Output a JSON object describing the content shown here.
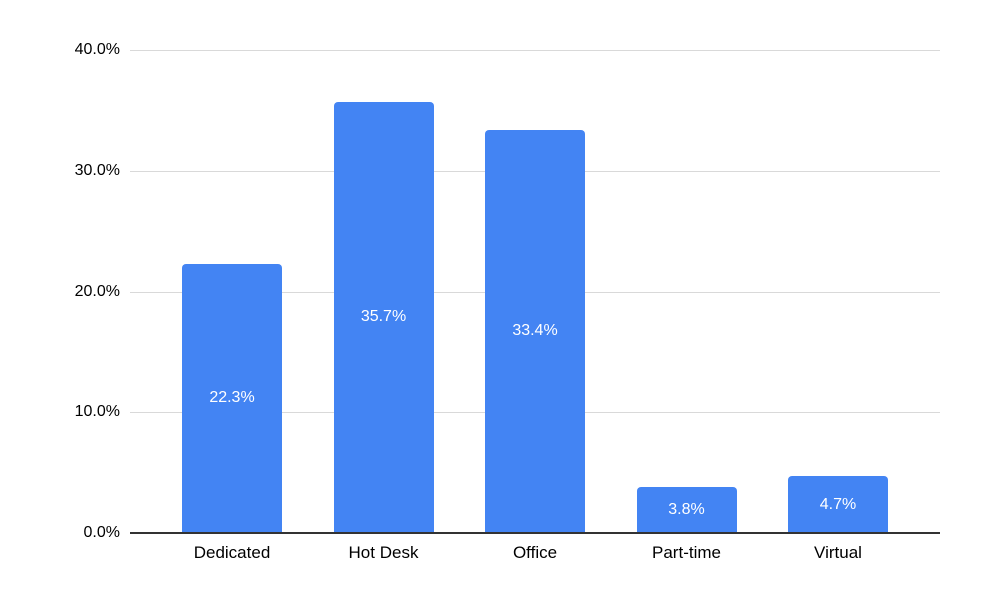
{
  "chart_data": {
    "type": "bar",
    "title": "",
    "xlabel": "",
    "ylabel": "",
    "categories": [
      "Dedicated",
      "Hot Desk",
      "Office",
      "Part-time",
      "Virtual"
    ],
    "values": [
      22.3,
      35.7,
      33.4,
      3.8,
      4.7
    ],
    "bar_labels": [
      "22.3%",
      "35.7%",
      "33.4%",
      "3.8%",
      "4.7%"
    ],
    "ylim": [
      0,
      40
    ],
    "ytick_values": [
      0,
      10,
      20,
      30,
      40
    ],
    "ytick_labels": [
      "0.0%",
      "10.0%",
      "20.0%",
      "30.0%",
      "40.0%"
    ],
    "grid": true,
    "legend_position": "none",
    "colors": {
      "bar_fill": "#4384f3",
      "bar_label_text": "#ffffff",
      "gridline": "#d9d9d9",
      "axis_line": "#333333",
      "tick_label_text": "#000000",
      "background": "#ffffff"
    }
  }
}
